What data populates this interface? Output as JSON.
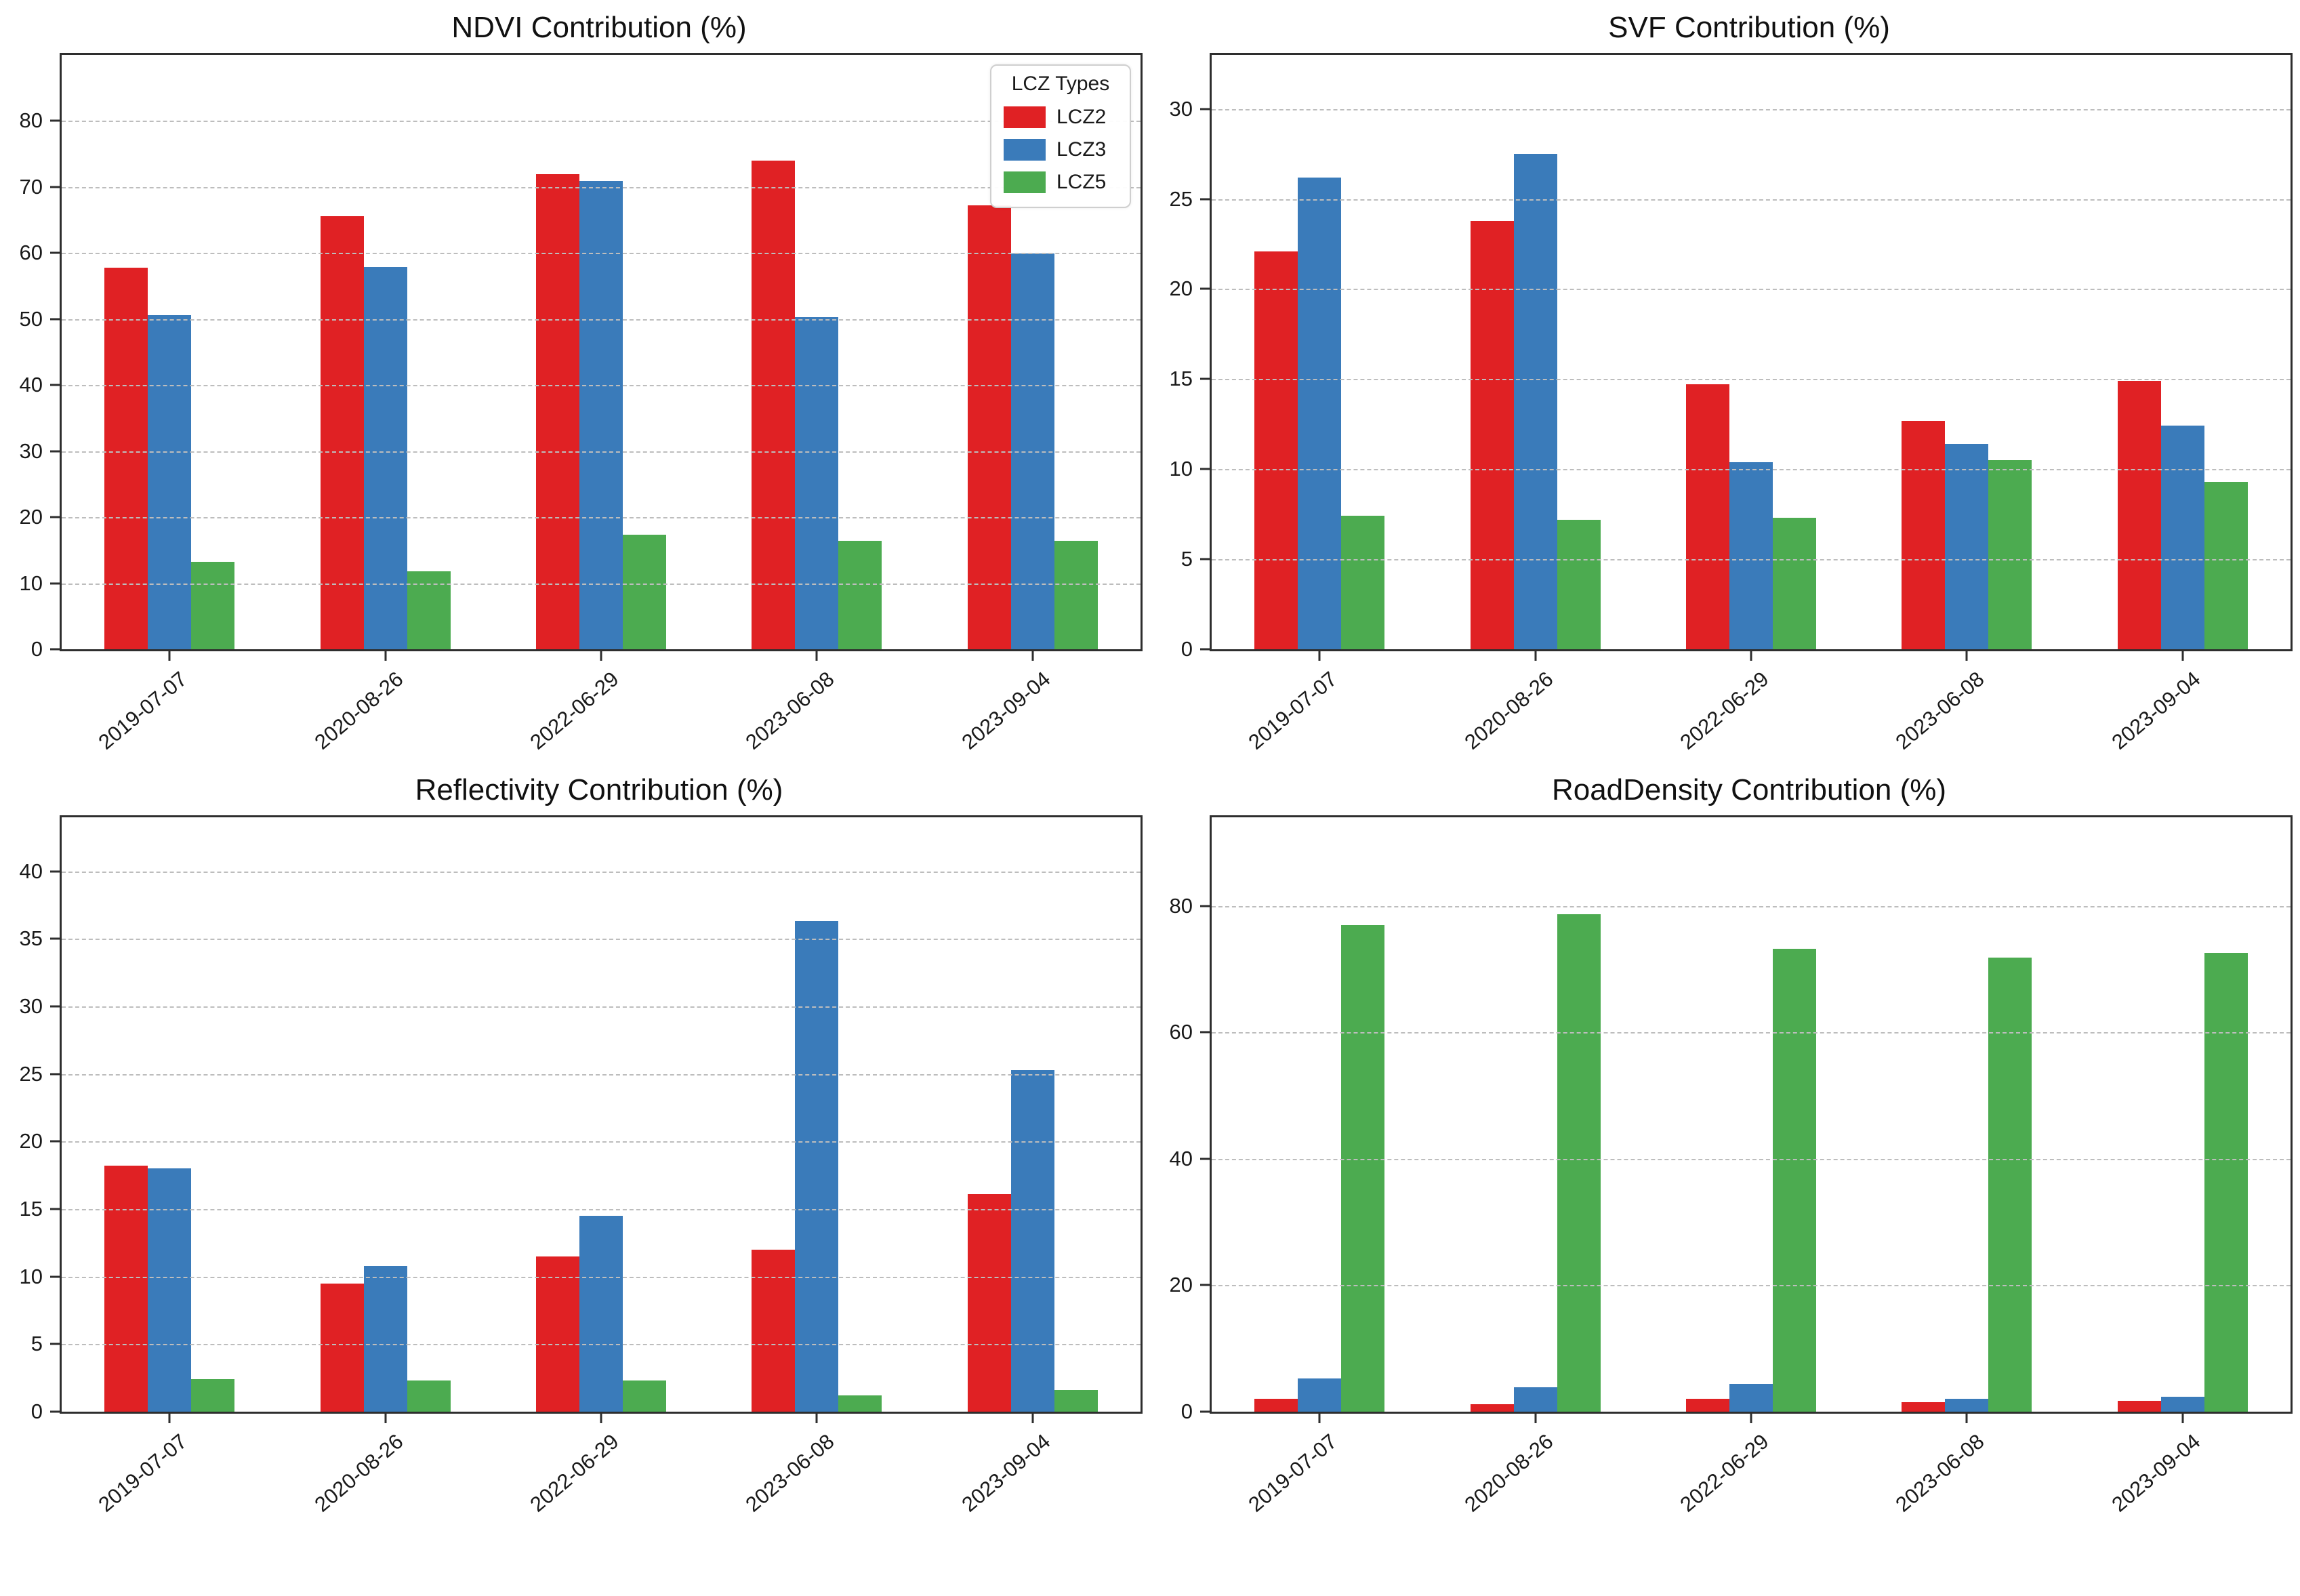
{
  "legend": {
    "title": "LCZ Types",
    "position": "upper-right-of-first-subplot",
    "entries": [
      {
        "label": "LCZ2",
        "color": "#e02124"
      },
      {
        "label": "LCZ3",
        "color": "#3a7bba"
      },
      {
        "label": "LCZ5",
        "color": "#4cab50"
      }
    ]
  },
  "chart_data": [
    {
      "type": "bar",
      "title": "NDVI Contribution (%)",
      "xlabel": "",
      "ylabel": "",
      "grid": "horizontal-dashed",
      "categories": [
        "2019-07-07",
        "2020-08-26",
        "2022-06-29",
        "2023-06-08",
        "2023-09-04"
      ],
      "yticks": [
        0,
        10,
        20,
        30,
        40,
        50,
        60,
        70,
        80
      ],
      "ylim": [
        0,
        90
      ],
      "series": [
        {
          "name": "LCZ2",
          "color": "#e02124",
          "values": [
            57.8,
            65.6,
            71.9,
            74.0,
            67.2
          ]
        },
        {
          "name": "LCZ3",
          "color": "#3a7bba",
          "values": [
            50.6,
            57.9,
            70.9,
            50.3,
            59.9
          ]
        },
        {
          "name": "LCZ5",
          "color": "#4cab50",
          "values": [
            13.2,
            11.8,
            17.3,
            16.4,
            16.4
          ]
        }
      ]
    },
    {
      "type": "bar",
      "title": "SVF Contribution (%)",
      "xlabel": "",
      "ylabel": "",
      "grid": "horizontal-dashed",
      "categories": [
        "2019-07-07",
        "2020-08-26",
        "2022-06-29",
        "2023-06-08",
        "2023-09-04"
      ],
      "yticks": [
        0,
        5,
        10,
        15,
        20,
        25,
        30
      ],
      "ylim": [
        0,
        33
      ],
      "series": [
        {
          "name": "LCZ2",
          "color": "#e02124",
          "values": [
            22.1,
            23.8,
            14.7,
            12.7,
            14.9
          ]
        },
        {
          "name": "LCZ3",
          "color": "#3a7bba",
          "values": [
            26.2,
            27.5,
            10.4,
            11.4,
            12.4
          ]
        },
        {
          "name": "LCZ5",
          "color": "#4cab50",
          "values": [
            7.4,
            7.2,
            7.3,
            10.5,
            9.3
          ]
        }
      ]
    },
    {
      "type": "bar",
      "title": "Reflectivity Contribution (%)",
      "xlabel": "",
      "ylabel": "",
      "grid": "horizontal-dashed",
      "categories": [
        "2019-07-07",
        "2020-08-26",
        "2022-06-29",
        "2023-06-08",
        "2023-09-04"
      ],
      "yticks": [
        0,
        5,
        10,
        15,
        20,
        25,
        30,
        35,
        40
      ],
      "ylim": [
        0,
        44
      ],
      "series": [
        {
          "name": "LCZ2",
          "color": "#e02124",
          "values": [
            18.2,
            9.5,
            11.5,
            12.0,
            16.1
          ]
        },
        {
          "name": "LCZ3",
          "color": "#3a7bba",
          "values": [
            18.0,
            10.8,
            14.5,
            36.3,
            25.3
          ]
        },
        {
          "name": "LCZ5",
          "color": "#4cab50",
          "values": [
            2.4,
            2.3,
            2.3,
            1.2,
            1.6
          ]
        }
      ]
    },
    {
      "type": "bar",
      "title": "RoadDensity Contribution (%)",
      "xlabel": "",
      "ylabel": "",
      "grid": "horizontal-dashed",
      "categories": [
        "2019-07-07",
        "2020-08-26",
        "2022-06-29",
        "2023-06-08",
        "2023-09-04"
      ],
      "yticks": [
        0,
        20,
        40,
        60,
        80
      ],
      "ylim": [
        0,
        94
      ],
      "series": [
        {
          "name": "LCZ2",
          "color": "#e02124",
          "values": [
            2.0,
            1.2,
            2.0,
            1.5,
            1.7
          ]
        },
        {
          "name": "LCZ3",
          "color": "#3a7bba",
          "values": [
            5.3,
            3.9,
            4.4,
            2.0,
            2.4
          ]
        },
        {
          "name": "LCZ5",
          "color": "#4cab50",
          "values": [
            77.0,
            78.7,
            73.2,
            71.8,
            72.6
          ]
        }
      ]
    }
  ]
}
